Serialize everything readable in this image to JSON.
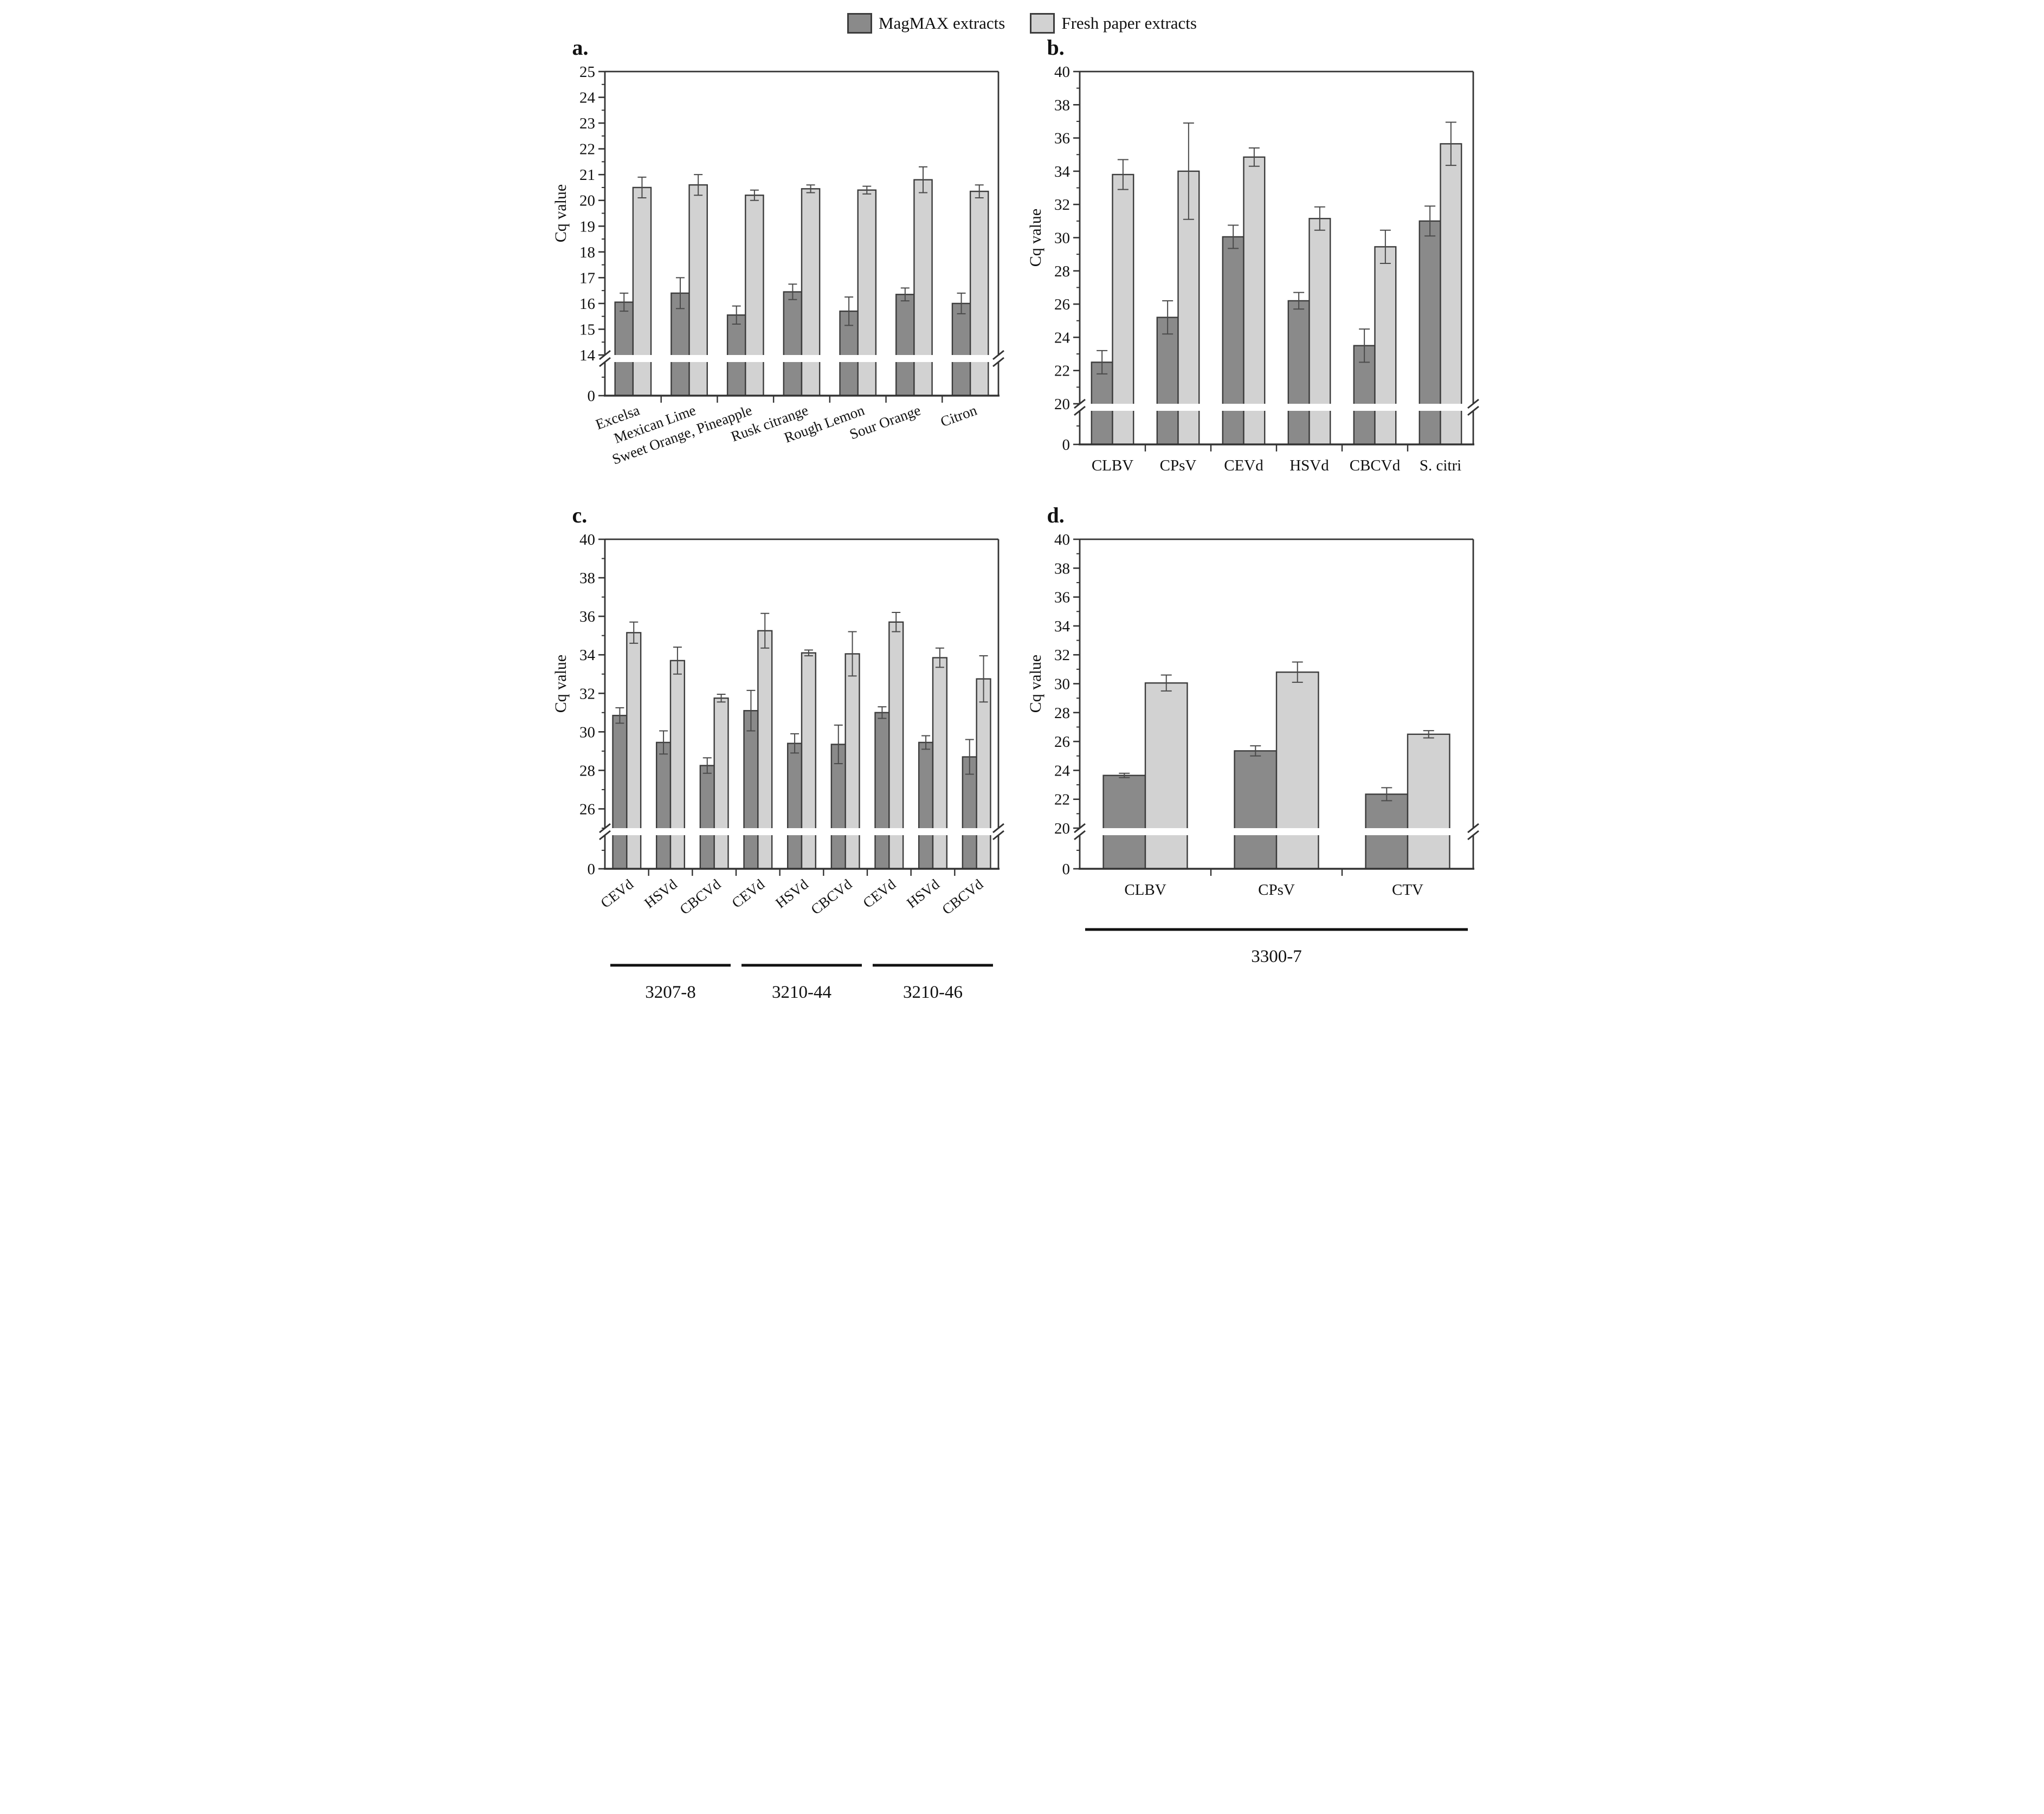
{
  "legend": {
    "items": [
      {
        "label": "MagMAX extracts",
        "color": "#8a8a8a"
      },
      {
        "label": "Fresh paper extracts",
        "color": "#d2d2d2"
      }
    ]
  },
  "colors": {
    "bar_edge": "#3c3c3c",
    "error_bar": "#4a4a4a",
    "axis": "#333333"
  },
  "chart_data": [
    {
      "panel_label": "a.",
      "type": "bar",
      "ylabel": "Cq value",
      "y_axis": {
        "min": 14,
        "max": 25,
        "major_step": 1,
        "minor_step": 0.5,
        "break_to_zero": true,
        "zero_label": "0"
      },
      "categories": [
        "Excelsa",
        "Mexican Lime",
        "Sweet Orange, Pineapple",
        "Rusk citrange",
        "Rough Lemon",
        "Sour Orange",
        "Citron"
      ],
      "series": [
        {
          "name": "MagMAX extracts",
          "values": [
            16.05,
            16.4,
            15.55,
            16.45,
            15.7,
            16.35,
            16.0
          ],
          "errors": [
            0.35,
            0.6,
            0.35,
            0.3,
            0.55,
            0.25,
            0.4
          ]
        },
        {
          "name": "Fresh paper extracts",
          "values": [
            20.5,
            20.6,
            20.2,
            20.45,
            20.4,
            20.8,
            20.35
          ],
          "errors": [
            0.4,
            0.4,
            0.2,
            0.15,
            0.15,
            0.5,
            0.25
          ]
        }
      ]
    },
    {
      "panel_label": "b.",
      "type": "bar",
      "ylabel": "Cq value",
      "y_axis": {
        "min": 20,
        "max": 40,
        "major_step": 2,
        "minor_step": 1,
        "break_to_zero": true,
        "zero_label": "0"
      },
      "categories": [
        "CLBV",
        "CPsV",
        "CEVd",
        "HSVd",
        "CBCVd",
        "S. citri"
      ],
      "series": [
        {
          "name": "MagMAX extracts",
          "values": [
            22.5,
            25.2,
            30.05,
            26.2,
            23.5,
            31.0
          ],
          "errors": [
            0.7,
            1.0,
            0.7,
            0.5,
            1.0,
            0.9
          ]
        },
        {
          "name": "Fresh paper extracts",
          "values": [
            33.8,
            34.0,
            34.85,
            31.15,
            29.45,
            35.65
          ],
          "errors": [
            0.9,
            2.9,
            0.55,
            0.7,
            1.0,
            1.3
          ]
        }
      ]
    },
    {
      "panel_label": "c.",
      "type": "bar",
      "ylabel": "Cq value",
      "y_axis": {
        "min": 25,
        "max": 40,
        "major_step": 2,
        "minor_step": 1,
        "major_start": 26,
        "break_to_zero": true,
        "zero_label": "0"
      },
      "categories": [
        "CEVd",
        "HSVd",
        "CBCVd",
        "CEVd",
        "HSVd",
        "CBCVd",
        "CEVd",
        "HSVd",
        "CBCVd"
      ],
      "groups": [
        {
          "label": "3207-8",
          "from": 0,
          "to": 2
        },
        {
          "label": "3210-44",
          "from": 3,
          "to": 5
        },
        {
          "label": "3210-46",
          "from": 6,
          "to": 8
        }
      ],
      "series": [
        {
          "name": "MagMAX extracts",
          "values": [
            30.85,
            29.45,
            28.25,
            31.1,
            29.4,
            29.35,
            31.0,
            29.45,
            28.7
          ],
          "errors": [
            0.4,
            0.6,
            0.4,
            1.05,
            0.5,
            1.0,
            0.3,
            0.35,
            0.9
          ]
        },
        {
          "name": "Fresh paper extracts",
          "values": [
            35.15,
            33.7,
            31.75,
            35.25,
            34.1,
            34.05,
            35.7,
            33.85,
            32.75
          ],
          "errors": [
            0.55,
            0.7,
            0.2,
            0.9,
            0.15,
            1.15,
            0.5,
            0.5,
            1.2
          ]
        }
      ]
    },
    {
      "panel_label": "d.",
      "type": "bar",
      "ylabel": "Cq value",
      "y_axis": {
        "min": 20,
        "max": 40,
        "major_step": 2,
        "minor_step": 1,
        "break_to_zero": true,
        "zero_label": "0"
      },
      "categories": [
        "CLBV",
        "CPsV",
        "CTV"
      ],
      "groups": [
        {
          "label": "3300-7",
          "from": 0,
          "to": 2
        }
      ],
      "series": [
        {
          "name": "MagMAX extracts",
          "values": [
            23.65,
            25.35,
            22.35
          ],
          "errors": [
            0.15,
            0.35,
            0.45
          ]
        },
        {
          "name": "Fresh paper extracts",
          "values": [
            30.05,
            30.8,
            26.5
          ],
          "errors": [
            0.55,
            0.7,
            0.25
          ]
        }
      ]
    }
  ]
}
